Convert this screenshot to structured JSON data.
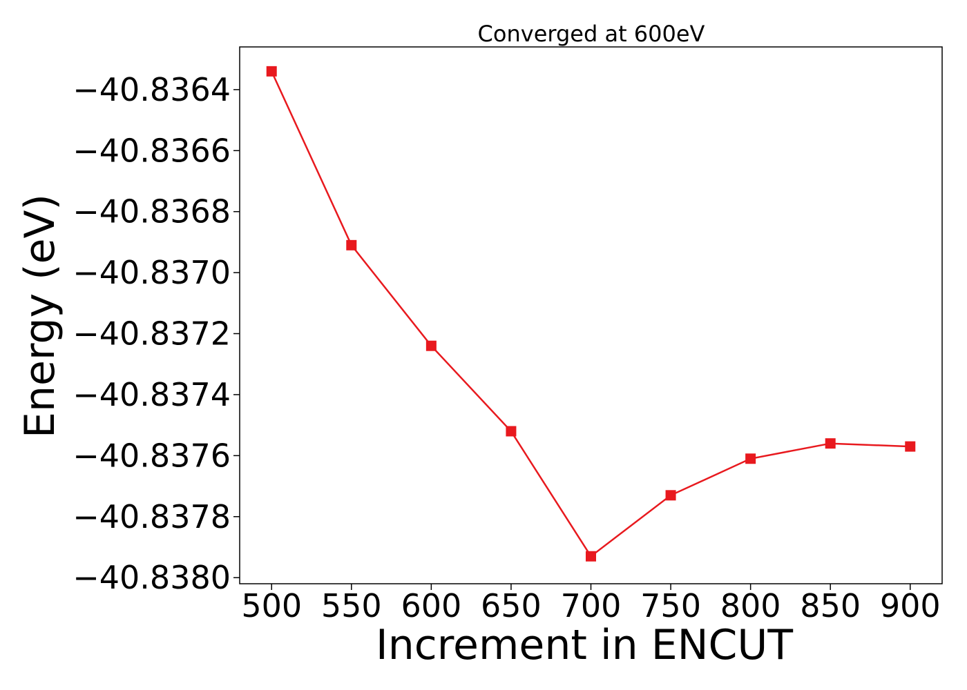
{
  "chart_data": {
    "type": "line",
    "title": "Converged at 600eV",
    "xlabel": "Increment in ENCUT",
    "ylabel": "Energy (eV)",
    "xlim": [
      480,
      920
    ],
    "ylim": [
      -40.83802,
      -40.83626
    ],
    "x_ticks": [
      500,
      550,
      600,
      650,
      700,
      750,
      800,
      850,
      900
    ],
    "x_tick_labels": [
      "500",
      "550",
      "600",
      "650",
      "700",
      "750",
      "800",
      "850",
      "900"
    ],
    "y_ticks": [
      -40.8364,
      -40.8366,
      -40.8368,
      -40.837,
      -40.8372,
      -40.8374,
      -40.8376,
      -40.8378,
      -40.838
    ],
    "y_tick_labels": [
      "−40.8364",
      "−40.8366",
      "−40.8368",
      "−40.8370",
      "−40.8372",
      "−40.8374",
      "−40.8376",
      "−40.8378",
      "−40.8380"
    ],
    "grid": false,
    "series": [
      {
        "color": "#e8191e",
        "marker": "square",
        "x": [
          500,
          550,
          600,
          650,
          700,
          750,
          800,
          850,
          900
        ],
        "y": [
          -40.83634,
          -40.83691,
          -40.83724,
          -40.83752,
          -40.83793,
          -40.83773,
          -40.83761,
          -40.83756,
          -40.83757
        ]
      }
    ]
  }
}
